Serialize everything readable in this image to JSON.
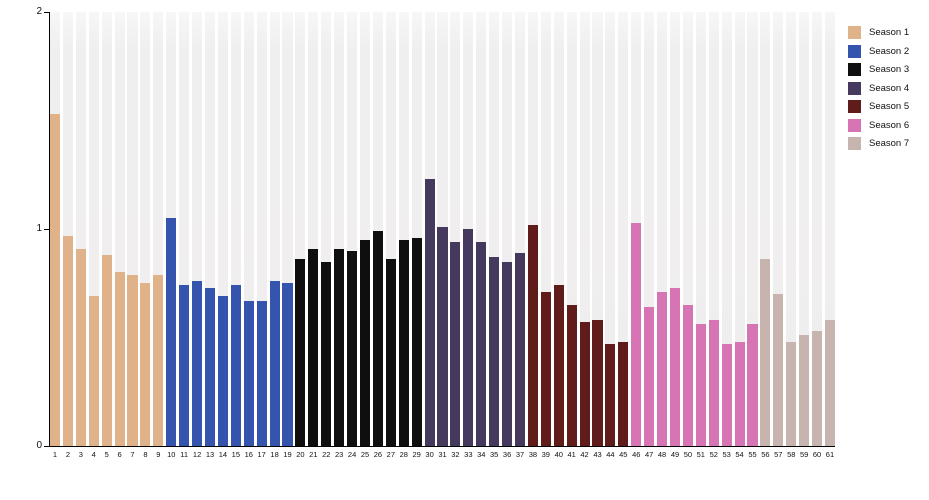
{
  "figure": {
    "background_color": "#ffffff",
    "plot_band_color": "#f0efee",
    "axis_color": "#000000"
  },
  "chart_data": {
    "type": "bar",
    "title": "",
    "xlabel": "",
    "ylabel": "",
    "ylim": [
      0,
      2
    ],
    "y_ticks": [
      0,
      1,
      2
    ],
    "y_tick_labels": [
      "0",
      "1",
      "2"
    ],
    "grid": false,
    "legend_position": "right",
    "categories": [
      "1",
      "2",
      "3",
      "4",
      "5",
      "6",
      "7",
      "8",
      "9",
      "10",
      "11",
      "12",
      "13",
      "14",
      "15",
      "16",
      "17",
      "18",
      "19",
      "20",
      "21",
      "22",
      "23",
      "24",
      "25",
      "26",
      "27",
      "28",
      "29",
      "30",
      "31",
      "32",
      "33",
      "34",
      "35",
      "36",
      "37",
      "38",
      "39",
      "40",
      "41",
      "42",
      "43",
      "44",
      "45",
      "46",
      "47",
      "48",
      "49",
      "50",
      "51",
      "52",
      "53",
      "54",
      "55",
      "56",
      "57",
      "58",
      "59",
      "60",
      "61"
    ],
    "series": [
      {
        "name": "Season 1",
        "color": "#e0b289",
        "episode_range": [
          1,
          9
        ],
        "values": [
          1.53,
          0.97,
          0.91,
          0.69,
          0.88,
          0.8,
          0.79,
          0.75,
          0.79
        ]
      },
      {
        "name": "Season 2",
        "color": "#3454ae",
        "episode_range": [
          10,
          19
        ],
        "values": [
          1.05,
          0.74,
          0.76,
          0.73,
          0.69,
          0.74,
          0.67,
          0.67,
          0.76,
          0.75
        ]
      },
      {
        "name": "Season 3",
        "color": "#0f0f0f",
        "episode_range": [
          20,
          29
        ],
        "values": [
          0.86,
          0.91,
          0.85,
          0.91,
          0.9,
          0.95,
          0.99,
          0.86,
          0.95,
          0.96
        ]
      },
      {
        "name": "Season 4",
        "color": "#453a5d",
        "episode_range": [
          30,
          37
        ],
        "values": [
          1.23,
          1.01,
          0.94,
          1.0,
          0.94,
          0.87,
          0.85,
          0.89
        ]
      },
      {
        "name": "Season 5",
        "color": "#601b1b",
        "episode_range": [
          38,
          45
        ],
        "values": [
          1.02,
          0.71,
          0.74,
          0.65,
          0.57,
          0.58,
          0.47,
          0.48
        ]
      },
      {
        "name": "Season 6",
        "color": "#d775b4",
        "episode_range": [
          46,
          55
        ],
        "values": [
          1.03,
          0.64,
          0.71,
          0.73,
          0.65,
          0.56,
          0.58,
          0.47,
          0.48,
          0.56
        ]
      },
      {
        "name": "Season 7",
        "color": "#c8b4af",
        "episode_range": [
          56,
          61
        ],
        "values": [
          0.86,
          0.7,
          0.48,
          0.51,
          0.53,
          0.58
        ]
      }
    ]
  },
  "legend": {
    "entries": [
      "Season 1",
      "Season 2",
      "Season 3",
      "Season 4",
      "Season 5",
      "Season 6",
      "Season 7"
    ]
  }
}
